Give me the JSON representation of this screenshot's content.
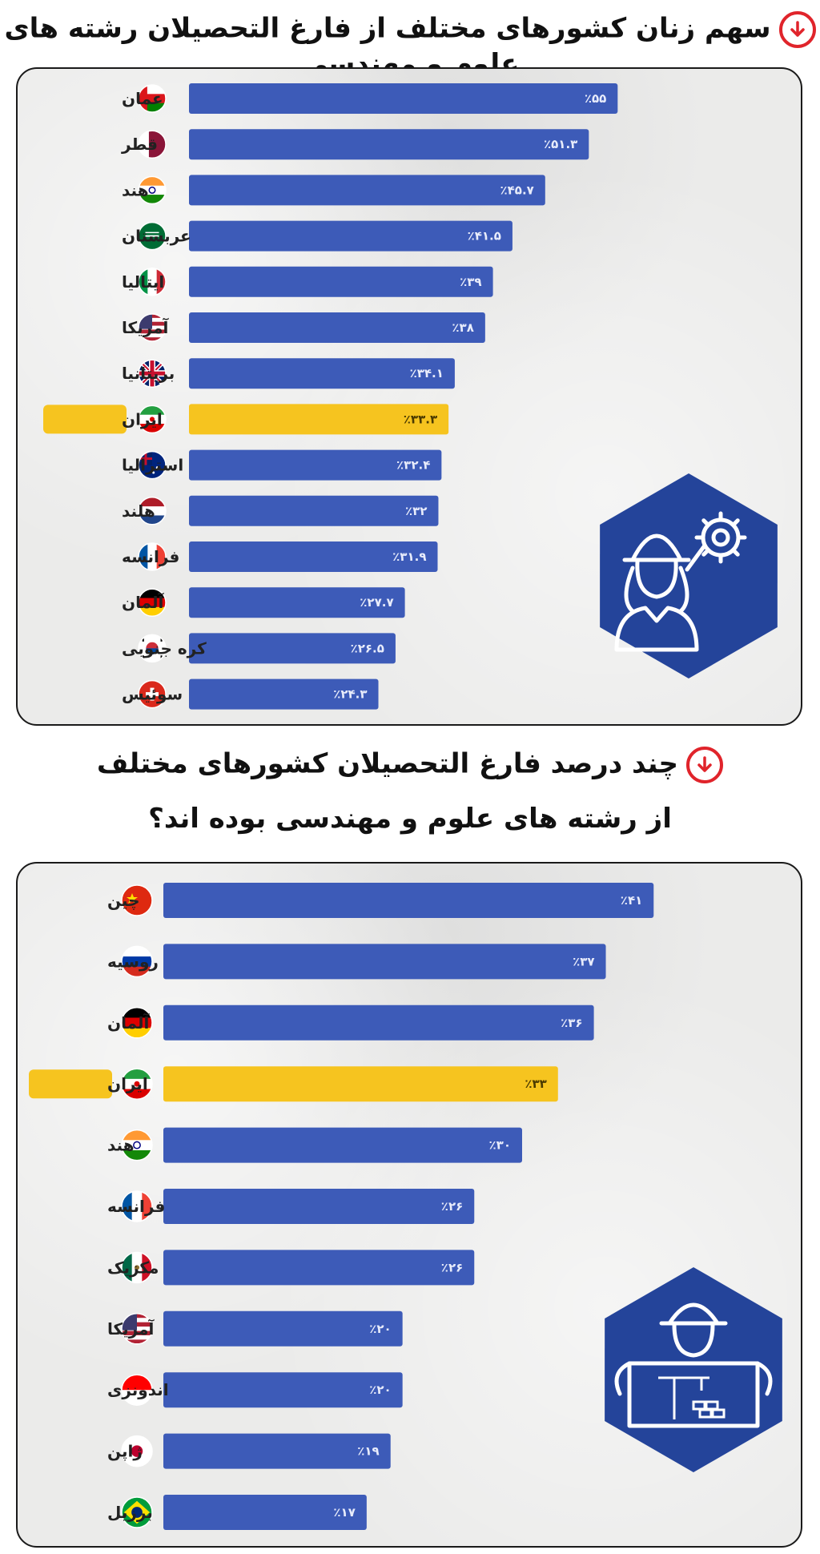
{
  "chart1": {
    "title": "سهم زنان کشورهای مختلف از فارغ التحصیلان رشته های علوم و مهندسی",
    "chart_data": {
      "type": "bar",
      "orientation": "horizontal",
      "categories": [
        "عمان",
        "قطر",
        "هند",
        "عربستان",
        "ایتالیا",
        "آمریکا",
        "بریتانیا",
        "ایران",
        "استرالیا",
        "هلند",
        "فرانسه",
        "آلمان",
        "کره جنوبی",
        "سوئیس"
      ],
      "values": [
        55,
        51.3,
        45.7,
        41.5,
        39,
        38,
        34.1,
        33.3,
        32.4,
        32,
        31.9,
        27.7,
        26.5,
        24.3
      ],
      "value_labels": [
        "٪۵۵",
        "٪۵۱.۳",
        "٪۴۵.۷",
        "٪۴۱.۵",
        "٪۳۹",
        "٪۳۸",
        "٪۳۴.۱",
        "٪۳۳.۳",
        "٪۳۲.۴",
        "٪۳۲",
        "٪۳۱.۹",
        "٪۲۷.۷",
        "٪۲۶.۵",
        "٪۲۴.۳"
      ],
      "highlight": "ایران",
      "xlim": [
        0,
        60
      ],
      "grid": false,
      "legend": false
    },
    "flags": [
      "oman",
      "qatar",
      "india",
      "saudi",
      "italy",
      "usa",
      "uk",
      "iran",
      "australia",
      "netherlands",
      "france",
      "germany",
      "south-korea",
      "switzerland"
    ],
    "illustration_icon": "female-engineer-gear-wrench-icon"
  },
  "chart2": {
    "title_line1": "چند درصد فارغ التحصیلان کشورهای مختلف",
    "title_line2": "از رشته های علوم و مهندسی بوده اند؟",
    "chart_data": {
      "type": "bar",
      "orientation": "horizontal",
      "categories": [
        "چین",
        "روسیه",
        "آلمان",
        "ایران",
        "هند",
        "فرانسه",
        "مکزیک",
        "آمریکا",
        "اندونزی",
        "ژاپن",
        "برزیل"
      ],
      "values": [
        41,
        37,
        36,
        33,
        30,
        26,
        26,
        20,
        20,
        19,
        17
      ],
      "value_labels": [
        "٪۴۱",
        "٪۳۷",
        "٪۳۶",
        "٪۳۳",
        "٪۳۰",
        "٪۲۶",
        "٪۲۶",
        "٪۲۰",
        "٪۲۰",
        "٪۱۹",
        "٪۱۷"
      ],
      "highlight": "ایران",
      "xlim": [
        0,
        45
      ],
      "grid": false,
      "legend": false
    },
    "flags": [
      "china",
      "russia",
      "germany",
      "iran",
      "india",
      "france",
      "mexico",
      "usa",
      "indonesia",
      "japan",
      "brazil"
    ],
    "illustration_icon": "engineer-blueprint-construction-icon"
  },
  "colors": {
    "bar": "#3d5bb8",
    "highlight": "#f6c41f",
    "hexagon": "#24449a",
    "title_arrow": "#e0242b"
  }
}
